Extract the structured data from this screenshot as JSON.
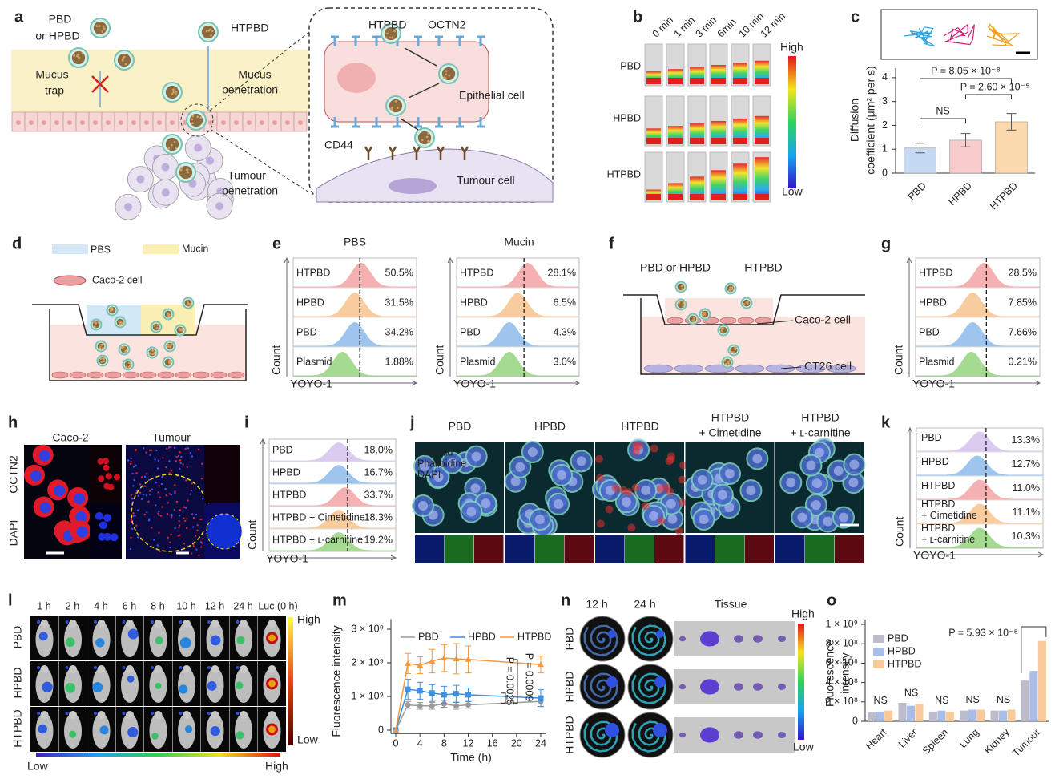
{
  "panel_labels": [
    "a",
    "b",
    "c",
    "d",
    "e",
    "f",
    "g",
    "h",
    "i",
    "j",
    "k",
    "l",
    "m",
    "n",
    "o"
  ],
  "a": {
    "pbd_or_hpbd": [
      "PBD",
      "or HPBD"
    ],
    "htpbd": "HTPBD",
    "mucus_trap": [
      "Mucus",
      "trap"
    ],
    "mucus_penetration": [
      "Mucus",
      "penetration"
    ],
    "tumour_penetration": [
      "Tumour",
      "penetration"
    ],
    "inset": {
      "htpbd": "HTPBD",
      "octn2": "OCTN2",
      "epithelial": "Epithelial cell",
      "cd44": "CD44",
      "tumour_cell": "Tumour cell"
    }
  },
  "b": {
    "times": [
      "0 min",
      "1 min",
      "3 min",
      "6min",
      "10 min",
      "12 min"
    ],
    "rows": [
      "PBD",
      "HPBD",
      "HTPBD"
    ],
    "high": "High",
    "low": "Low"
  },
  "chart_data": [
    {
      "type": "bar",
      "categories": [
        "PBD",
        "HPBD",
        "HTPBD"
      ],
      "values": [
        1.05,
        1.38,
        2.15
      ],
      "errors": [
        0.2,
        0.28,
        0.35
      ],
      "colors": [
        "#c5d9f2",
        "#f8cccc",
        "#fbd9ae"
      ],
      "ylim": [
        0,
        4.4
      ],
      "yticks": [
        0,
        1,
        2,
        3,
        4
      ],
      "ylabel": [
        "Diffusion",
        "coefficient (μm² per s)"
      ],
      "annotations": [
        "NS",
        "P = 8.05 × 10⁻⁸",
        "P = 2.60 × 10⁻⁵"
      ]
    },
    {
      "type": "line",
      "x": [
        0,
        2,
        4,
        6,
        8,
        10,
        12,
        24
      ],
      "xlim": [
        -0.8,
        24.8
      ],
      "xticks": [
        0,
        4,
        8,
        12,
        16,
        20,
        24
      ],
      "ylim": [
        -100000000,
        3300000000
      ],
      "yticks": [
        0,
        {
          "value": 1000000000,
          "label": "1 × 10⁹"
        },
        {
          "value": 2000000000,
          "label": "2 × 10⁹"
        },
        {
          "value": 3000000000,
          "label": "3 × 10⁹"
        }
      ],
      "xlabel": "Time (h)",
      "ylabel": "Fluorescence intensity",
      "series": [
        {
          "name": "PBD",
          "color": "#9a9a9a",
          "marker": "circle",
          "values": [
            0,
            750000000,
            720000000,
            720000000,
            780000000,
            720000000,
            750000000,
            850000000
          ],
          "errors": [
            0,
            100000000,
            100000000,
            100000000,
            100000000,
            100000000,
            100000000,
            150000000
          ]
        },
        {
          "name": "HPBD",
          "color": "#3d8fe0",
          "marker": "square",
          "values": [
            0,
            1210000000,
            1170000000,
            1100000000,
            1050000000,
            1080000000,
            1050000000,
            950000000
          ],
          "errors": [
            0,
            300000000,
            250000000,
            250000000,
            250000000,
            250000000,
            200000000,
            250000000
          ]
        },
        {
          "name": "HTPBD",
          "color": "#f39a3c",
          "marker": "triangle",
          "values": [
            0,
            1980000000,
            1930000000,
            2050000000,
            2140000000,
            2120000000,
            2100000000,
            1950000000
          ],
          "errors": [
            0,
            300000000,
            250000000,
            350000000,
            400000000,
            450000000,
            400000000,
            250000000
          ]
        }
      ],
      "annotations": [
        "P = 0.0025",
        "P = 0.0009"
      ]
    },
    {
      "type": "grouped-bar",
      "categories": [
        "Heart",
        "Liver",
        "Spleen",
        "Lung",
        "Kidney",
        "Tumour"
      ],
      "ylim": [
        0,
        1050000000
      ],
      "yticks": [
        0,
        {
          "value": 200000000,
          "label": "2 × 10⁸"
        },
        {
          "value": 400000000,
          "label": "4 × 10⁸"
        },
        {
          "value": 600000000,
          "label": "6 × 10⁸"
        },
        {
          "value": 800000000,
          "label": "8 × 10⁸"
        },
        {
          "value": 1000000000,
          "label": "1 × 10⁹"
        }
      ],
      "ylabel": [
        "Fluorescence",
        "intensity"
      ],
      "series": [
        {
          "name": "PBD",
          "color": "#bcbccc",
          "values": [
            90000000,
            190000000,
            100000000,
            110000000,
            110000000,
            420000000
          ]
        },
        {
          "name": "HPBD",
          "color": "#aabde6",
          "values": [
            100000000,
            160000000,
            110000000,
            120000000,
            110000000,
            520000000
          ]
        },
        {
          "name": "HTPBD",
          "color": "#f8c999",
          "values": [
            110000000,
            180000000,
            100000000,
            120000000,
            120000000,
            830000000
          ]
        }
      ],
      "annotations": [
        "NS",
        "NS",
        "NS",
        "NS",
        "NS",
        "P = 5.93 × 10⁻⁵"
      ]
    }
  ],
  "d": {
    "pbs": "PBS",
    "mucin": "Mucin",
    "caco2": "Caco-2 cell"
  },
  "e": {
    "plots": [
      {
        "title": "PBS",
        "rows": [
          "HTPBD",
          "HPBD",
          "PBD",
          "Plasmid"
        ],
        "percents": [
          "50.5%",
          "31.5%",
          "34.2%",
          "1.88%"
        ],
        "ylabel": "Count",
        "xlabel": "YOYO-1"
      },
      {
        "title": "Mucin",
        "rows": [
          "HTPBD",
          "HPBD",
          "PBD",
          "Plasmid"
        ],
        "percents": [
          "28.1%",
          "6.5%",
          "4.3%",
          "3.0%"
        ],
        "ylabel": "Count",
        "xlabel": "YOYO-1"
      }
    ]
  },
  "f": {
    "pbd_or_hpbd": "PBD or HPBD",
    "htpbd": "HTPBD",
    "caco2": "Caco-2 cell",
    "ct26": "CT26 cell"
  },
  "g": {
    "rows": [
      "HTPBD",
      "HPBD",
      "PBD",
      "Plasmid"
    ],
    "percents": [
      "28.5%",
      "7.85%",
      "7.66%",
      "0.21%"
    ],
    "ylabel": "Count",
    "xlabel": "YOYO-1"
  },
  "h": {
    "columns": [
      "Caco-2",
      "Tumour"
    ],
    "stains": [
      "OCTN2",
      "DAPI"
    ]
  },
  "i": {
    "rows": [
      "PBD",
      "HPBD",
      "HTPBD",
      "HTPBD + Cimetidine",
      "HTPBD + ʟ-carnitine"
    ],
    "percents": [
      "18.0%",
      "16.7%",
      "33.7%",
      "18.3%",
      "19.2%"
    ],
    "ylabel": "Count",
    "xlabel": "YOYO-1"
  },
  "j": {
    "columns": [
      [
        "PBD"
      ],
      [
        "HPBD"
      ],
      [
        "HTPBD"
      ],
      [
        "HTPBD",
        "+ Cimetidine"
      ],
      [
        "HTPBD",
        "+ ʟ-carnitine"
      ]
    ],
    "stains": [
      "Plasmid",
      "Phalloidine",
      "DAPI"
    ]
  },
  "k": {
    "rows": [
      [
        "PBD"
      ],
      [
        "HPBD"
      ],
      [
        "HTPBD"
      ],
      [
        "HTPBD",
        "+ Cimetidine"
      ],
      [
        "HTPBD",
        "+ ʟ-carnitine"
      ]
    ],
    "percents": [
      "13.3%",
      "12.7%",
      "11.0%",
      "11.1%",
      "10.3%"
    ],
    "ylabel": "Count",
    "xlabel": "YOYO-1"
  },
  "l": {
    "times": [
      "1 h",
      "2 h",
      "4 h",
      "6 h",
      "8 h",
      "10 h",
      "12 h",
      "24 h",
      "Luc (0 h)"
    ],
    "rows": [
      "PBD",
      "HPBD",
      "HTPBD"
    ],
    "high": "High",
    "low": "Low",
    "bar_low": "Low",
    "bar_high": "High"
  },
  "n": {
    "times": [
      "12 h",
      "24 h"
    ],
    "tissue": "Tissue",
    "rows": [
      "PBD",
      "HPBD",
      "HTPBD"
    ],
    "high": "High",
    "low": "Low"
  }
}
